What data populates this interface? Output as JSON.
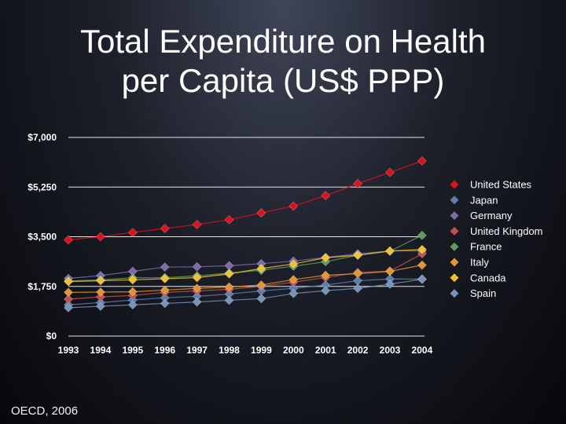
{
  "title": {
    "line1": "Total Expenditure on Health",
    "line2": "per Capita (US$ PPP)"
  },
  "source": "OECD, 2006",
  "chart_data": {
    "type": "line",
    "title": "Total Expenditure on Health per Capita (US$ PPP)",
    "xlabel": "",
    "ylabel": "",
    "ylim": [
      0,
      7000
    ],
    "yticks": [
      0,
      1750,
      3500,
      5250,
      7000
    ],
    "ytick_labels": [
      "$0",
      "$1,750",
      "$3,500",
      "$5,250",
      "$7,000"
    ],
    "grid": true,
    "legend_position": "right",
    "categories": [
      "1993",
      "1994",
      "1995",
      "1996",
      "1997",
      "1998",
      "1999",
      "2000",
      "2001",
      "2002",
      "2003",
      "2004"
    ],
    "series": [
      {
        "name": "United States",
        "color": "#e0101a",
        "values": [
          3390,
          3500,
          3650,
          3790,
          3930,
          4100,
          4340,
          4580,
          4950,
          5370,
          5770,
          6170
        ]
      },
      {
        "name": "Japan",
        "color": "#5b7dad",
        "values": [
          1100,
          1180,
          1270,
          1350,
          1400,
          1480,
          1590,
          1680,
          1800,
          1950,
          2010,
          2010
        ]
      },
      {
        "name": "Germany",
        "color": "#7d6aa8",
        "values": [
          2030,
          2130,
          2280,
          2430,
          2440,
          2480,
          2550,
          2640,
          2770,
          2900,
          3000,
          3000
        ]
      },
      {
        "name": "United Kingdom",
        "color": "#c0504d",
        "values": [
          1300,
          1380,
          1430,
          1540,
          1590,
          1650,
          1750,
          1900,
          2060,
          2240,
          2290,
          2900
        ]
      },
      {
        "name": "France",
        "color": "#5e9e5a",
        "values": [
          1940,
          1980,
          2050,
          2060,
          2120,
          2220,
          2320,
          2460,
          2620,
          2850,
          2990,
          3550
        ]
      },
      {
        "name": "Italy",
        "color": "#e5952f",
        "values": [
          1540,
          1550,
          1560,
          1620,
          1680,
          1730,
          1800,
          1990,
          2140,
          2200,
          2280,
          2500
        ]
      },
      {
        "name": "Canada",
        "color": "#f2c12e",
        "values": [
          1920,
          1950,
          1980,
          2020,
          2060,
          2190,
          2380,
          2540,
          2760,
          2850,
          3000,
          3050
        ]
      },
      {
        "name": "Spain",
        "color": "#7794b8",
        "values": [
          1000,
          1050,
          1100,
          1150,
          1200,
          1260,
          1320,
          1500,
          1600,
          1680,
          1830,
          2000
        ]
      }
    ]
  }
}
